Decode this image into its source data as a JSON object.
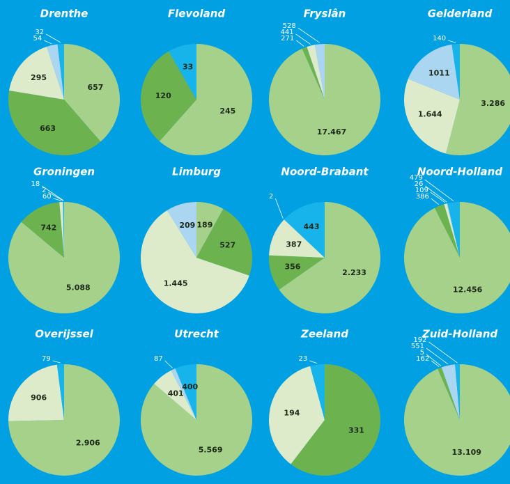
{
  "chart_data": [
    {
      "type": "pie",
      "title": "Drenthe",
      "values": [
        657,
        663,
        295,
        54,
        32
      ],
      "value_labels": [
        "657",
        "663",
        "295",
        "54",
        "32"
      ],
      "colors": [
        "#a6d18a",
        "#6cb350",
        "#deebcb",
        "#aad6f2",
        "#16b4ea"
      ]
    },
    {
      "type": "pie",
      "title": "Flevoland",
      "values": [
        245,
        120,
        33
      ],
      "value_labels": [
        "245",
        "120",
        "33"
      ],
      "colors": [
        "#a6d18a",
        "#6cb350",
        "#16b4ea"
      ]
    },
    {
      "type": "pie",
      "title": "Fryslân",
      "values": [
        17467,
        271,
        441,
        528
      ],
      "value_labels": [
        "17.467",
        "271",
        "441",
        "528"
      ],
      "colors": [
        "#a6d18a",
        "#6cb350",
        "#deebcb",
        "#aad6f2"
      ]
    },
    {
      "type": "pie",
      "title": "Gelderland",
      "values": [
        3286,
        1644,
        1011,
        140
      ],
      "value_labels": [
        "3.286",
        "1.644",
        "1011",
        "140"
      ],
      "colors": [
        "#a6d18a",
        "#deebcb",
        "#aad6f2",
        "#16b4ea"
      ]
    },
    {
      "type": "pie",
      "title": "Groningen",
      "values": [
        5088,
        742,
        60,
        2,
        18
      ],
      "value_labels": [
        "5.088",
        "742",
        "60",
        "2",
        "18"
      ],
      "colors": [
        "#a6d18a",
        "#6cb350",
        "#deebcb",
        "#aad6f2",
        "#16b4ea"
      ]
    },
    {
      "type": "pie",
      "title": "Limburg",
      "values": [
        189,
        527,
        1445,
        209
      ],
      "value_labels": [
        "189",
        "527",
        "1.445",
        "209"
      ],
      "colors": [
        "#a6d18a",
        "#6cb350",
        "#deebcb",
        "#aad6f2"
      ]
    },
    {
      "type": "pie",
      "title": "Noord-Brabant",
      "values": [
        2233,
        356,
        387,
        2,
        443
      ],
      "value_labels": [
        "2.233",
        "356",
        "387",
        "2",
        "443"
      ],
      "colors": [
        "#a6d18a",
        "#6cb350",
        "#deebcb",
        "#aad6f2",
        "#16b4ea"
      ]
    },
    {
      "type": "pie",
      "title": "Noord-Holland",
      "values": [
        12456,
        386,
        109,
        26,
        479
      ],
      "value_labels": [
        "12.456",
        "386",
        "109",
        "26",
        "479"
      ],
      "colors": [
        "#a6d18a",
        "#6cb350",
        "#deebcb",
        "#aad6f2",
        "#16b4ea"
      ]
    },
    {
      "type": "pie",
      "title": "Overijssel",
      "values": [
        2906,
        906,
        79
      ],
      "value_labels": [
        "2.906",
        "906",
        "79"
      ],
      "colors": [
        "#a6d18a",
        "#deebcb",
        "#16b4ea"
      ]
    },
    {
      "type": "pie",
      "title": "Utrecht",
      "values": [
        5569,
        401,
        87,
        400
      ],
      "value_labels": [
        "5.569",
        "401",
        "87",
        "400"
      ],
      "colors": [
        "#a6d18a",
        "#deebcb",
        "#aad6f2",
        "#16b4ea"
      ]
    },
    {
      "type": "pie",
      "title": "Zeeland",
      "values": [
        331,
        194,
        23
      ],
      "value_labels": [
        "331",
        "194",
        "23"
      ],
      "colors": [
        "#6cb350",
        "#deebcb",
        "#16b4ea"
      ]
    },
    {
      "type": "pie",
      "title": "Zuid-Holland",
      "values": [
        13109,
        162,
        5,
        551,
        192
      ],
      "value_labels": [
        "13.109",
        "162",
        "5",
        "551",
        "192"
      ],
      "colors": [
        "#a6d18a",
        "#6cb350",
        "#deebcb",
        "#aad6f2",
        "#16b4ea"
      ]
    }
  ]
}
